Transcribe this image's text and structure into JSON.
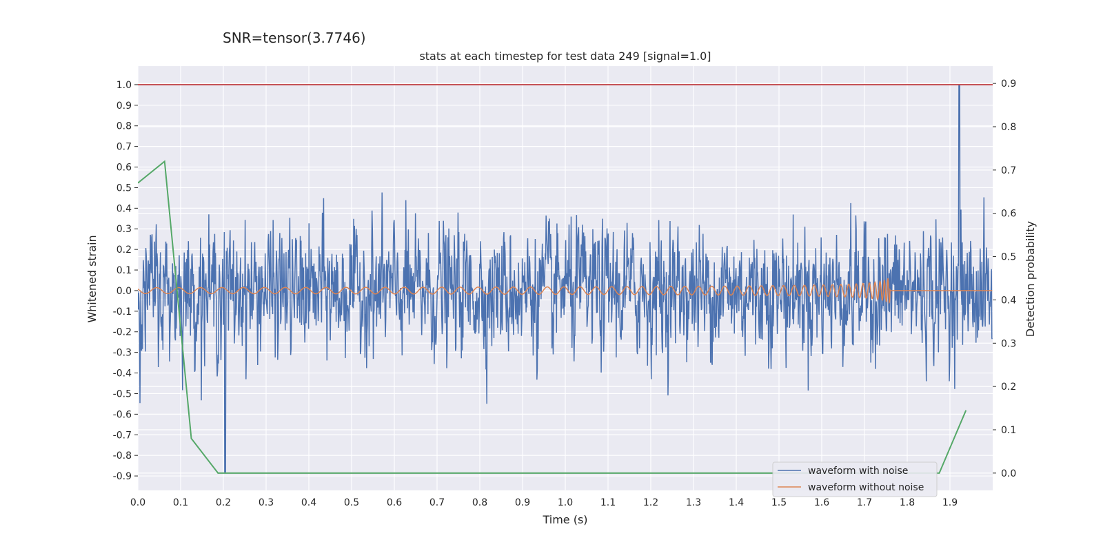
{
  "chart_data": {
    "type": "line",
    "suptitle": "SNR=tensor(3.7746)",
    "title": "stats at each timestep for test data 249 [signal=1.0]",
    "xlabel": "Time (s)",
    "ylabel_left": "Whitened strain",
    "ylabel_right": "Detection probability",
    "xlim": [
      0.0,
      2.0
    ],
    "ylim_left": [
      -0.97,
      1.09
    ],
    "ylim_right": [
      -0.04,
      0.94
    ],
    "x_ticks": [
      0.0,
      0.1,
      0.2,
      0.3,
      0.4,
      0.5,
      0.6,
      0.7,
      0.8,
      0.9,
      1.0,
      1.1,
      1.2,
      1.3,
      1.4,
      1.5,
      1.6,
      1.7,
      1.8,
      1.9
    ],
    "y_ticks_left": [
      1.0,
      0.9,
      0.8,
      0.7,
      0.6,
      0.5,
      0.4,
      0.3,
      0.2,
      0.1,
      0.0,
      -0.1,
      -0.2,
      -0.3,
      -0.4,
      -0.5,
      -0.6,
      -0.7,
      -0.8,
      -0.9
    ],
    "y_ticks_right": [
      0.9,
      0.8,
      0.7,
      0.6,
      0.5,
      0.4,
      0.3,
      0.2,
      0.1,
      0.0
    ],
    "grid": true,
    "legend_position": "bottom-right",
    "series": [
      {
        "name": "waveform with noise",
        "axis": "left",
        "color": "#4c72b0",
        "noise_amplitude": 0.19,
        "max": 1.0,
        "min": -0.88,
        "x_range": [
          0.0,
          2.0
        ]
      },
      {
        "name": "waveform without noise",
        "axis": "left",
        "color": "#dd8452",
        "x_range": [
          0.0,
          2.0
        ],
        "merger_time": 1.76
      },
      {
        "axis": "right",
        "color": "#55a868",
        "x": [
          0.0,
          0.0625,
          0.125,
          0.1875,
          0.25,
          1.5,
          1.875,
          1.9375
        ],
        "y": [
          0.67,
          0.72,
          0.08,
          0.0,
          0.0,
          0.0,
          0.0,
          0.145
        ]
      },
      {
        "axis": "left",
        "color": "#c44e52",
        "y_constant": 1.0
      }
    ],
    "legend": [
      "waveform with noise",
      "waveform without noise"
    ]
  },
  "colors": {
    "plot_background": "#eaeaf2",
    "grid": "#ffffff",
    "text": "#262626",
    "legend_background": "#eaeaf2"
  }
}
